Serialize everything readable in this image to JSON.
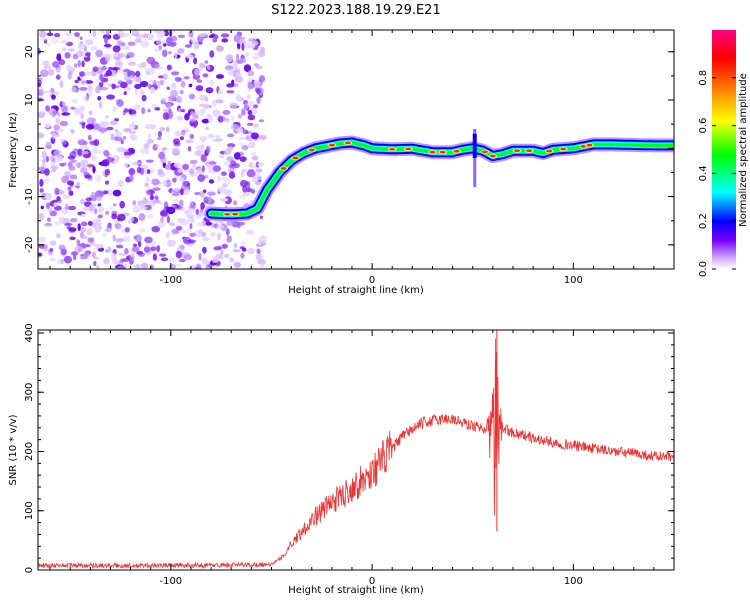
{
  "title": "S122.2023.188.19.29.E21",
  "chart_data": [
    {
      "type": "heatmap",
      "xlabel": "Height of straight line (km)",
      "ylabel": "Frequency (Hz)",
      "xlim": [
        -166,
        150
      ],
      "ylim": [
        -25,
        24.5
      ],
      "x_ticks": [
        -100,
        0,
        100
      ],
      "y_ticks": [
        -20,
        -10,
        0,
        10,
        20
      ],
      "noise_region_x": [
        -166,
        -54
      ],
      "ridge": {
        "x": [
          -80,
          -70,
          -62,
          -57,
          -52,
          -46,
          -40,
          -34,
          -28,
          -22,
          -16,
          -10,
          -4,
          0,
          10,
          20,
          30,
          40,
          45,
          50,
          55,
          60,
          65,
          70,
          80,
          85,
          90,
          100,
          110,
          120,
          130,
          140,
          150
        ],
        "y": [
          -13.5,
          -13.7,
          -13.5,
          -12.5,
          -8.5,
          -5,
          -2.5,
          -1,
          0,
          0.5,
          1,
          1.2,
          0.6,
          0,
          -0.2,
          -0.1,
          -0.8,
          -0.8,
          -0.3,
          0,
          -0.5,
          -1.6,
          -1.2,
          -0.5,
          -0.5,
          -1,
          -0.3,
          0,
          0.8,
          0.8,
          0.7,
          0.6,
          0.6
        ]
      },
      "spike": {
        "x": 51,
        "y_range": [
          -8,
          4
        ]
      },
      "colorbar": {
        "label": "Normalized spectral amplitude",
        "range": [
          0,
          1
        ],
        "ticks": [
          "0.0",
          "0.2",
          "0.4",
          "0.6",
          "0.8"
        ],
        "colors": [
          "#ffffff",
          "#c9a0ff",
          "#7a00ff",
          "#0000ff",
          "#00ffff",
          "#00ff00",
          "#ffff00",
          "#ff8000",
          "#ff0000",
          "#ff0080"
        ]
      }
    },
    {
      "type": "line",
      "xlabel": "Height of straight line (km)",
      "ylabel": "SNR (10 * v/v)",
      "xlim": [
        -166,
        150
      ],
      "ylim": [
        0,
        405
      ],
      "x_ticks": [
        -100,
        0,
        100
      ],
      "y_ticks": [
        0,
        100,
        200,
        300,
        400
      ],
      "color": "#ee3333",
      "series": [
        {
          "x": [
            -166,
            -140,
            -120,
            -100,
            -80,
            -60,
            -50,
            -45,
            -40,
            -35,
            -30,
            -25,
            -20,
            -15,
            -10,
            -5,
            0,
            5,
            10,
            15,
            20,
            25,
            30,
            35,
            40,
            45,
            50,
            55,
            58,
            60,
            62,
            64,
            66,
            70,
            75,
            80,
            90,
            100,
            110,
            120,
            130,
            140,
            150
          ],
          "values": [
            8,
            8,
            7,
            8,
            8,
            9,
            10,
            20,
            45,
            65,
            85,
            100,
            115,
            125,
            140,
            150,
            165,
            185,
            205,
            225,
            238,
            248,
            252,
            255,
            255,
            248,
            243,
            240,
            238,
            240,
            238,
            240,
            238,
            232,
            228,
            222,
            215,
            210,
            205,
            200,
            197,
            192,
            190
          ]
        }
      ],
      "spike_x": 61,
      "spike_range": [
        65,
        405
      ]
    }
  ]
}
